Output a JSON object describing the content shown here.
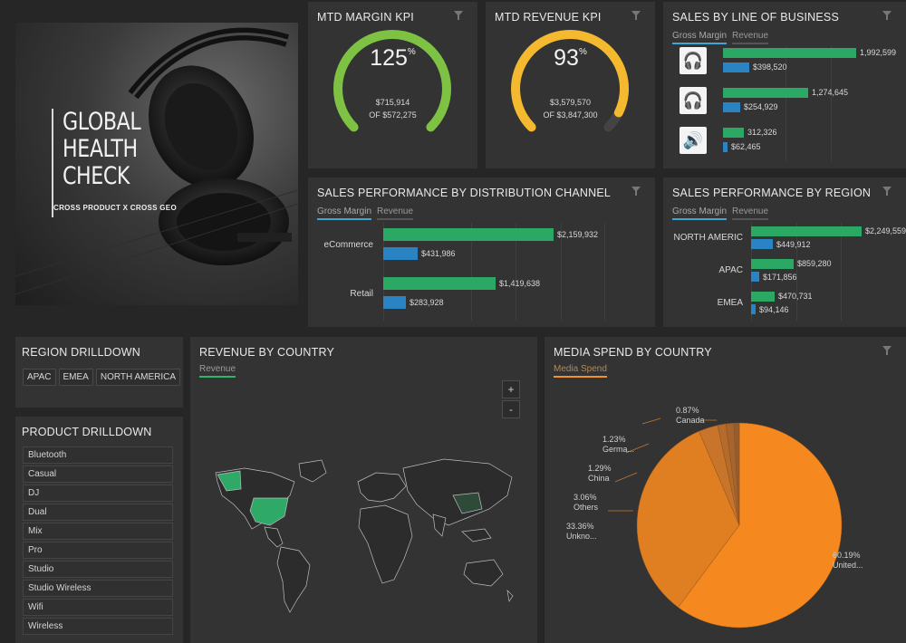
{
  "hero": {
    "title_line1": "GLOBAL",
    "title_line2": "HEALTH",
    "title_line3": "CHECK",
    "subtitle": "CROSS PRODUCT X CROSS GEO"
  },
  "margin_kpi": {
    "title": "MTD MARGIN KPI",
    "percent": "125",
    "percent_symbol": "%",
    "value": "$715,914",
    "of_value": "OF $572,275",
    "fill_fraction": 1.0,
    "color": "#7dc242"
  },
  "revenue_kpi": {
    "title": "MTD REVENUE KPI",
    "percent": "93",
    "percent_symbol": "%",
    "value": "$3,579,570",
    "of_value": "OF $3,847,300",
    "fill_fraction": 0.93,
    "color": "#f5b930"
  },
  "line_of_business": {
    "title": "SALES BY LINE OF BUSINESS",
    "tabs": [
      "Gross Margin",
      "Revenue"
    ],
    "items": [
      {
        "icon": "earbuds-icon",
        "green": 1992599,
        "green_label": "1,992,599",
        "blue": 398520,
        "blue_label": "$398,520"
      },
      {
        "icon": "headphones-icon",
        "green": 1274645,
        "green_label": "1,274,645",
        "blue": 254929,
        "blue_label": "$254,929"
      },
      {
        "icon": "speakers-icon",
        "green": 312326,
        "green_label": "312,326",
        "blue": 62465,
        "blue_label": "$62,465"
      }
    ]
  },
  "distribution": {
    "title": "SALES PERFORMANCE BY DISTRIBUTION CHANNEL",
    "tabs": [
      "Gross Margin",
      "Revenue"
    ],
    "items": [
      {
        "label": "eCommerce",
        "green": 2159932,
        "green_label": "$2,159,932",
        "blue": 431986,
        "blue_label": "$431,986"
      },
      {
        "label": "Retail",
        "green": 1419638,
        "green_label": "$1,419,638",
        "blue": 283928,
        "blue_label": "$283,928"
      }
    ]
  },
  "region": {
    "title": "SALES PERFORMANCE BY REGION",
    "tabs": [
      "Gross Margin",
      "Revenue"
    ],
    "items": [
      {
        "label": "NORTH AMERIC",
        "green": 2249559,
        "green_label": "$2,249,559",
        "blue": 449912,
        "blue_label": "$449,912"
      },
      {
        "label": "APAC",
        "green": 859280,
        "green_label": "$859,280",
        "blue": 171856,
        "blue_label": "$171,856"
      },
      {
        "label": "EMEA",
        "green": 470731,
        "green_label": "$470,731",
        "blue": 94146,
        "blue_label": "$94,146"
      }
    ]
  },
  "region_drilldown": {
    "title": "REGION DRILLDOWN",
    "chips": [
      "APAC",
      "EMEA",
      "NORTH AMERICA"
    ]
  },
  "product_drilldown": {
    "title": "PRODUCT DRILLDOWN",
    "items": [
      "Bluetooth",
      "Casual",
      "DJ",
      "Dual",
      "Mix",
      "Pro",
      "Studio",
      "Studio Wireless",
      "Wifi",
      "Wireless"
    ]
  },
  "revenue_map": {
    "title": "REVENUE BY COUNTRY",
    "tab": "Revenue",
    "zoom_in": "+",
    "zoom_out": "-"
  },
  "media_spend": {
    "title": "MEDIA SPEND BY COUNTRY",
    "tab": "Media Spend"
  },
  "chart_data": {
    "type": "pie",
    "title": "MEDIA SPEND BY COUNTRY",
    "slices": [
      {
        "label": "United...",
        "pct_label": "60.19%",
        "value": 60.19,
        "color": "#f5891f"
      },
      {
        "label": "Unkno...",
        "pct_label": "33.36%",
        "value": 33.36,
        "color": "#e07f22"
      },
      {
        "label": "Others",
        "pct_label": "3.06%",
        "value": 3.06,
        "color": "#c8742a"
      },
      {
        "label": "China",
        "pct_label": "1.29%",
        "value": 1.29,
        "color": "#b56b2c"
      },
      {
        "label": "Germa...",
        "pct_label": "1.23%",
        "value": 1.23,
        "color": "#a6642e"
      },
      {
        "label": "Canada",
        "pct_label": "0.87%",
        "value": 0.87,
        "color": "#955c2f"
      }
    ]
  }
}
